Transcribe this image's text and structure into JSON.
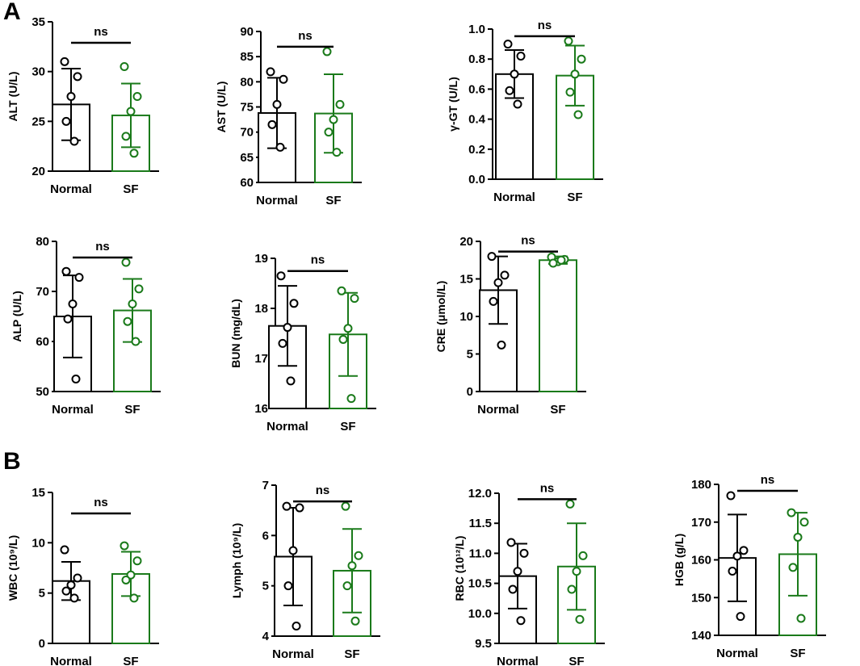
{
  "panel_labels": {
    "a": "A",
    "b": "B"
  },
  "colors": {
    "normal": "#000000",
    "sf": "#1a7a1a",
    "axis": "#000000"
  },
  "chart_data": [
    {
      "id": "alt",
      "type": "bar",
      "ylabel": "ALT (U/L)",
      "categories": [
        "Normal",
        "SF"
      ],
      "ylim": [
        20,
        35
      ],
      "yticks": [
        "20",
        "25",
        "30",
        "35"
      ],
      "means": [
        26.7,
        25.6
      ],
      "sd": [
        3.6,
        3.2
      ],
      "points": [
        [
          31.0,
          29.5,
          27.5,
          25.0,
          23.0
        ],
        [
          30.5,
          27.5,
          26.0,
          23.5,
          21.8
        ]
      ],
      "annotation": "ns"
    },
    {
      "id": "ast",
      "type": "bar",
      "ylabel": "AST (U/L)",
      "categories": [
        "Normal",
        "SF"
      ],
      "ylim": [
        60,
        90
      ],
      "yticks": [
        "60",
        "65",
        "70",
        "75",
        "80",
        "85",
        "90"
      ],
      "means": [
        73.8,
        73.7
      ],
      "sd": [
        7.0,
        7.8
      ],
      "points": [
        [
          82.0,
          80.5,
          75.5,
          71.5,
          67.0
        ],
        [
          86.0,
          75.5,
          72.5,
          70.0,
          66.0
        ]
      ],
      "annotation": "ns"
    },
    {
      "id": "ggt",
      "type": "bar",
      "ylabel": "γ-GT (U/L)",
      "categories": [
        "Normal",
        "SF"
      ],
      "ylim": [
        0.0,
        1.0
      ],
      "yticks": [
        "0.0",
        "0.2",
        "0.4",
        "0.6",
        "0.8",
        "1.0"
      ],
      "means": [
        0.7,
        0.69
      ],
      "sd": [
        0.16,
        0.2
      ],
      "points": [
        [
          0.9,
          0.82,
          0.7,
          0.59,
          0.5
        ],
        [
          0.92,
          0.8,
          0.7,
          0.58,
          0.43
        ]
      ],
      "annotation": "ns"
    },
    {
      "id": "alp",
      "type": "bar",
      "ylabel": "ALP (U/L)",
      "categories": [
        "Normal",
        "SF"
      ],
      "ylim": [
        50,
        80
      ],
      "yticks": [
        "50",
        "60",
        "70",
        "80"
      ],
      "means": [
        65.0,
        66.2
      ],
      "sd": [
        8.2,
        6.3
      ],
      "points": [
        [
          74.0,
          72.8,
          67.5,
          64.5,
          52.5
        ],
        [
          75.8,
          70.5,
          67.5,
          64.0,
          60.0
        ]
      ],
      "annotation": "ns"
    },
    {
      "id": "bun",
      "type": "bar",
      "ylabel": "BUN (mg/dL)",
      "categories": [
        "Normal",
        "SF"
      ],
      "ylim": [
        16,
        19
      ],
      "yticks": [
        "16",
        "17",
        "18",
        "19"
      ],
      "means": [
        17.65,
        17.48
      ],
      "sd": [
        0.8,
        0.83
      ],
      "points": [
        [
          18.65,
          18.1,
          17.62,
          17.3,
          16.55
        ],
        [
          18.35,
          18.2,
          17.6,
          17.38,
          16.2
        ]
      ],
      "annotation": "ns"
    },
    {
      "id": "cre",
      "type": "bar",
      "ylabel": "CRE (μmol/L)",
      "categories": [
        "Normal",
        "SF"
      ],
      "ylim": [
        0,
        20
      ],
      "yticks": [
        "0",
        "5",
        "10",
        "15",
        "20"
      ],
      "means": [
        13.5,
        17.5
      ],
      "sd": [
        4.5,
        0.5
      ],
      "points": [
        [
          18.0,
          15.5,
          14.5,
          12.0,
          6.2
        ],
        [
          17.9,
          17.6,
          17.3,
          17.1,
          17.5
        ]
      ],
      "annotation": "ns"
    },
    {
      "id": "wbc",
      "type": "bar",
      "ylabel": "WBC (10⁹/L)",
      "categories": [
        "Normal",
        "SF"
      ],
      "ylim": [
        0,
        15
      ],
      "yticks": [
        "0",
        "5",
        "10",
        "15"
      ],
      "means": [
        6.2,
        6.9
      ],
      "sd": [
        1.9,
        2.2
      ],
      "points": [
        [
          9.3,
          6.5,
          5.8,
          5.2,
          4.5
        ],
        [
          9.7,
          8.2,
          6.8,
          6.3,
          4.5
        ]
      ],
      "annotation": "ns"
    },
    {
      "id": "lymph",
      "type": "bar",
      "ylabel": "Lymph (10⁹/L)",
      "categories": [
        "Normal",
        "SF"
      ],
      "ylim": [
        4,
        7
      ],
      "yticks": [
        "4",
        "5",
        "6",
        "7"
      ],
      "means": [
        5.58,
        5.3
      ],
      "sd": [
        0.97,
        0.83
      ],
      "points": [
        [
          6.58,
          6.55,
          5.7,
          5.0,
          4.2
        ],
        [
          6.58,
          5.6,
          5.4,
          5.0,
          4.3
        ]
      ],
      "annotation": "ns"
    },
    {
      "id": "rbc",
      "type": "bar",
      "ylabel": "RBC (10¹²/L)",
      "categories": [
        "Normal",
        "SF"
      ],
      "ylim": [
        9.5,
        12.0
      ],
      "yticks": [
        "9.5",
        "10.0",
        "10.5",
        "11.0",
        "11.5",
        "12.0"
      ],
      "means": [
        10.62,
        10.78
      ],
      "sd": [
        0.54,
        0.72
      ],
      "points": [
        [
          11.18,
          11.0,
          10.7,
          10.4,
          9.88
        ],
        [
          11.82,
          10.96,
          10.7,
          10.4,
          9.9
        ]
      ],
      "annotation": "ns"
    },
    {
      "id": "hgb",
      "type": "bar",
      "ylabel": "HGB (g/L)",
      "categories": [
        "Normal",
        "SF"
      ],
      "ylim": [
        140,
        180
      ],
      "yticks": [
        "140",
        "150",
        "160",
        "170",
        "180"
      ],
      "means": [
        160.5,
        161.5
      ],
      "sd": [
        11.5,
        11.0
      ],
      "points": [
        [
          177.0,
          162.5,
          161.0,
          157.0,
          145.0
        ],
        [
          172.5,
          170.0,
          166.0,
          158.0,
          144.5
        ]
      ],
      "annotation": "ns"
    }
  ]
}
